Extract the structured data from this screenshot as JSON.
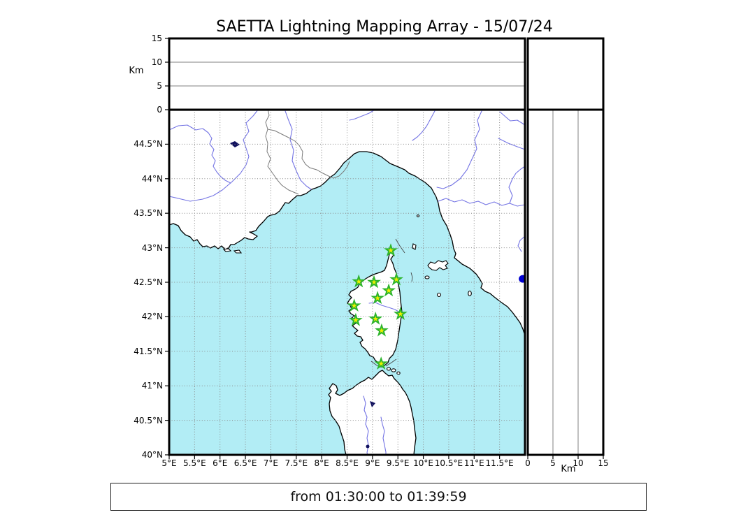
{
  "title": "SAETTA Lightning Mapping Array - 15/07/24",
  "footer": {
    "time_range": "from 01:30:00 to 01:39:59"
  },
  "altitude_panel": {
    "unit_label": "Km",
    "ticks": [
      "0",
      "5",
      "10",
      "15"
    ],
    "range_km": [
      0,
      15
    ],
    "gridlines_km": [
      5,
      10
    ]
  },
  "right_altitude_panel": {
    "unit_label": "Km",
    "ticks": [
      "0",
      "5",
      "10",
      "15"
    ],
    "range_km": [
      0,
      15
    ],
    "gridlines_km": [
      5,
      10
    ]
  },
  "map": {
    "lon_range": [
      5,
      12
    ],
    "lat_range": [
      40,
      45
    ],
    "lon_ticks": [
      "5°E",
      "5.5°E",
      "6°E",
      "6.5°E",
      "7°E",
      "7.5°E",
      "8°E",
      "8.5°E",
      "9°E",
      "9.5°E",
      "10°E",
      "10.5°E",
      "11°E",
      "11.5°E"
    ],
    "lat_ticks": [
      "44.5°N",
      "44°N",
      "43.5°N",
      "43°N",
      "42.5°N",
      "42°N",
      "41.5°N",
      "41°N",
      "40.5°N",
      "40°N"
    ],
    "stations": [
      {
        "lon": 9.36,
        "lat": 42.96
      },
      {
        "lon": 8.73,
        "lat": 42.51
      },
      {
        "lon": 9.03,
        "lat": 42.5
      },
      {
        "lon": 9.47,
        "lat": 42.54
      },
      {
        "lon": 9.32,
        "lat": 42.38
      },
      {
        "lon": 9.1,
        "lat": 42.27
      },
      {
        "lon": 8.64,
        "lat": 42.16
      },
      {
        "lon": 9.55,
        "lat": 42.04
      },
      {
        "lon": 8.67,
        "lat": 41.95
      },
      {
        "lon": 9.06,
        "lat": 41.97
      },
      {
        "lon": 9.18,
        "lat": 41.8
      },
      {
        "lon": 9.17,
        "lat": 41.32
      }
    ],
    "source_dot": {
      "lon": 11.96,
      "lat": 42.55
    },
    "colors": {
      "sea": "#b2edf5",
      "land": "#ffffff",
      "coast": "#000000",
      "river": "#7474e4",
      "border": "#7a7a7a",
      "grid": "#8a8a8a",
      "lake": "#10105e",
      "station_fill": "#eef000",
      "station_edge": "#2db42d",
      "source_fill": "#0000d2"
    }
  }
}
